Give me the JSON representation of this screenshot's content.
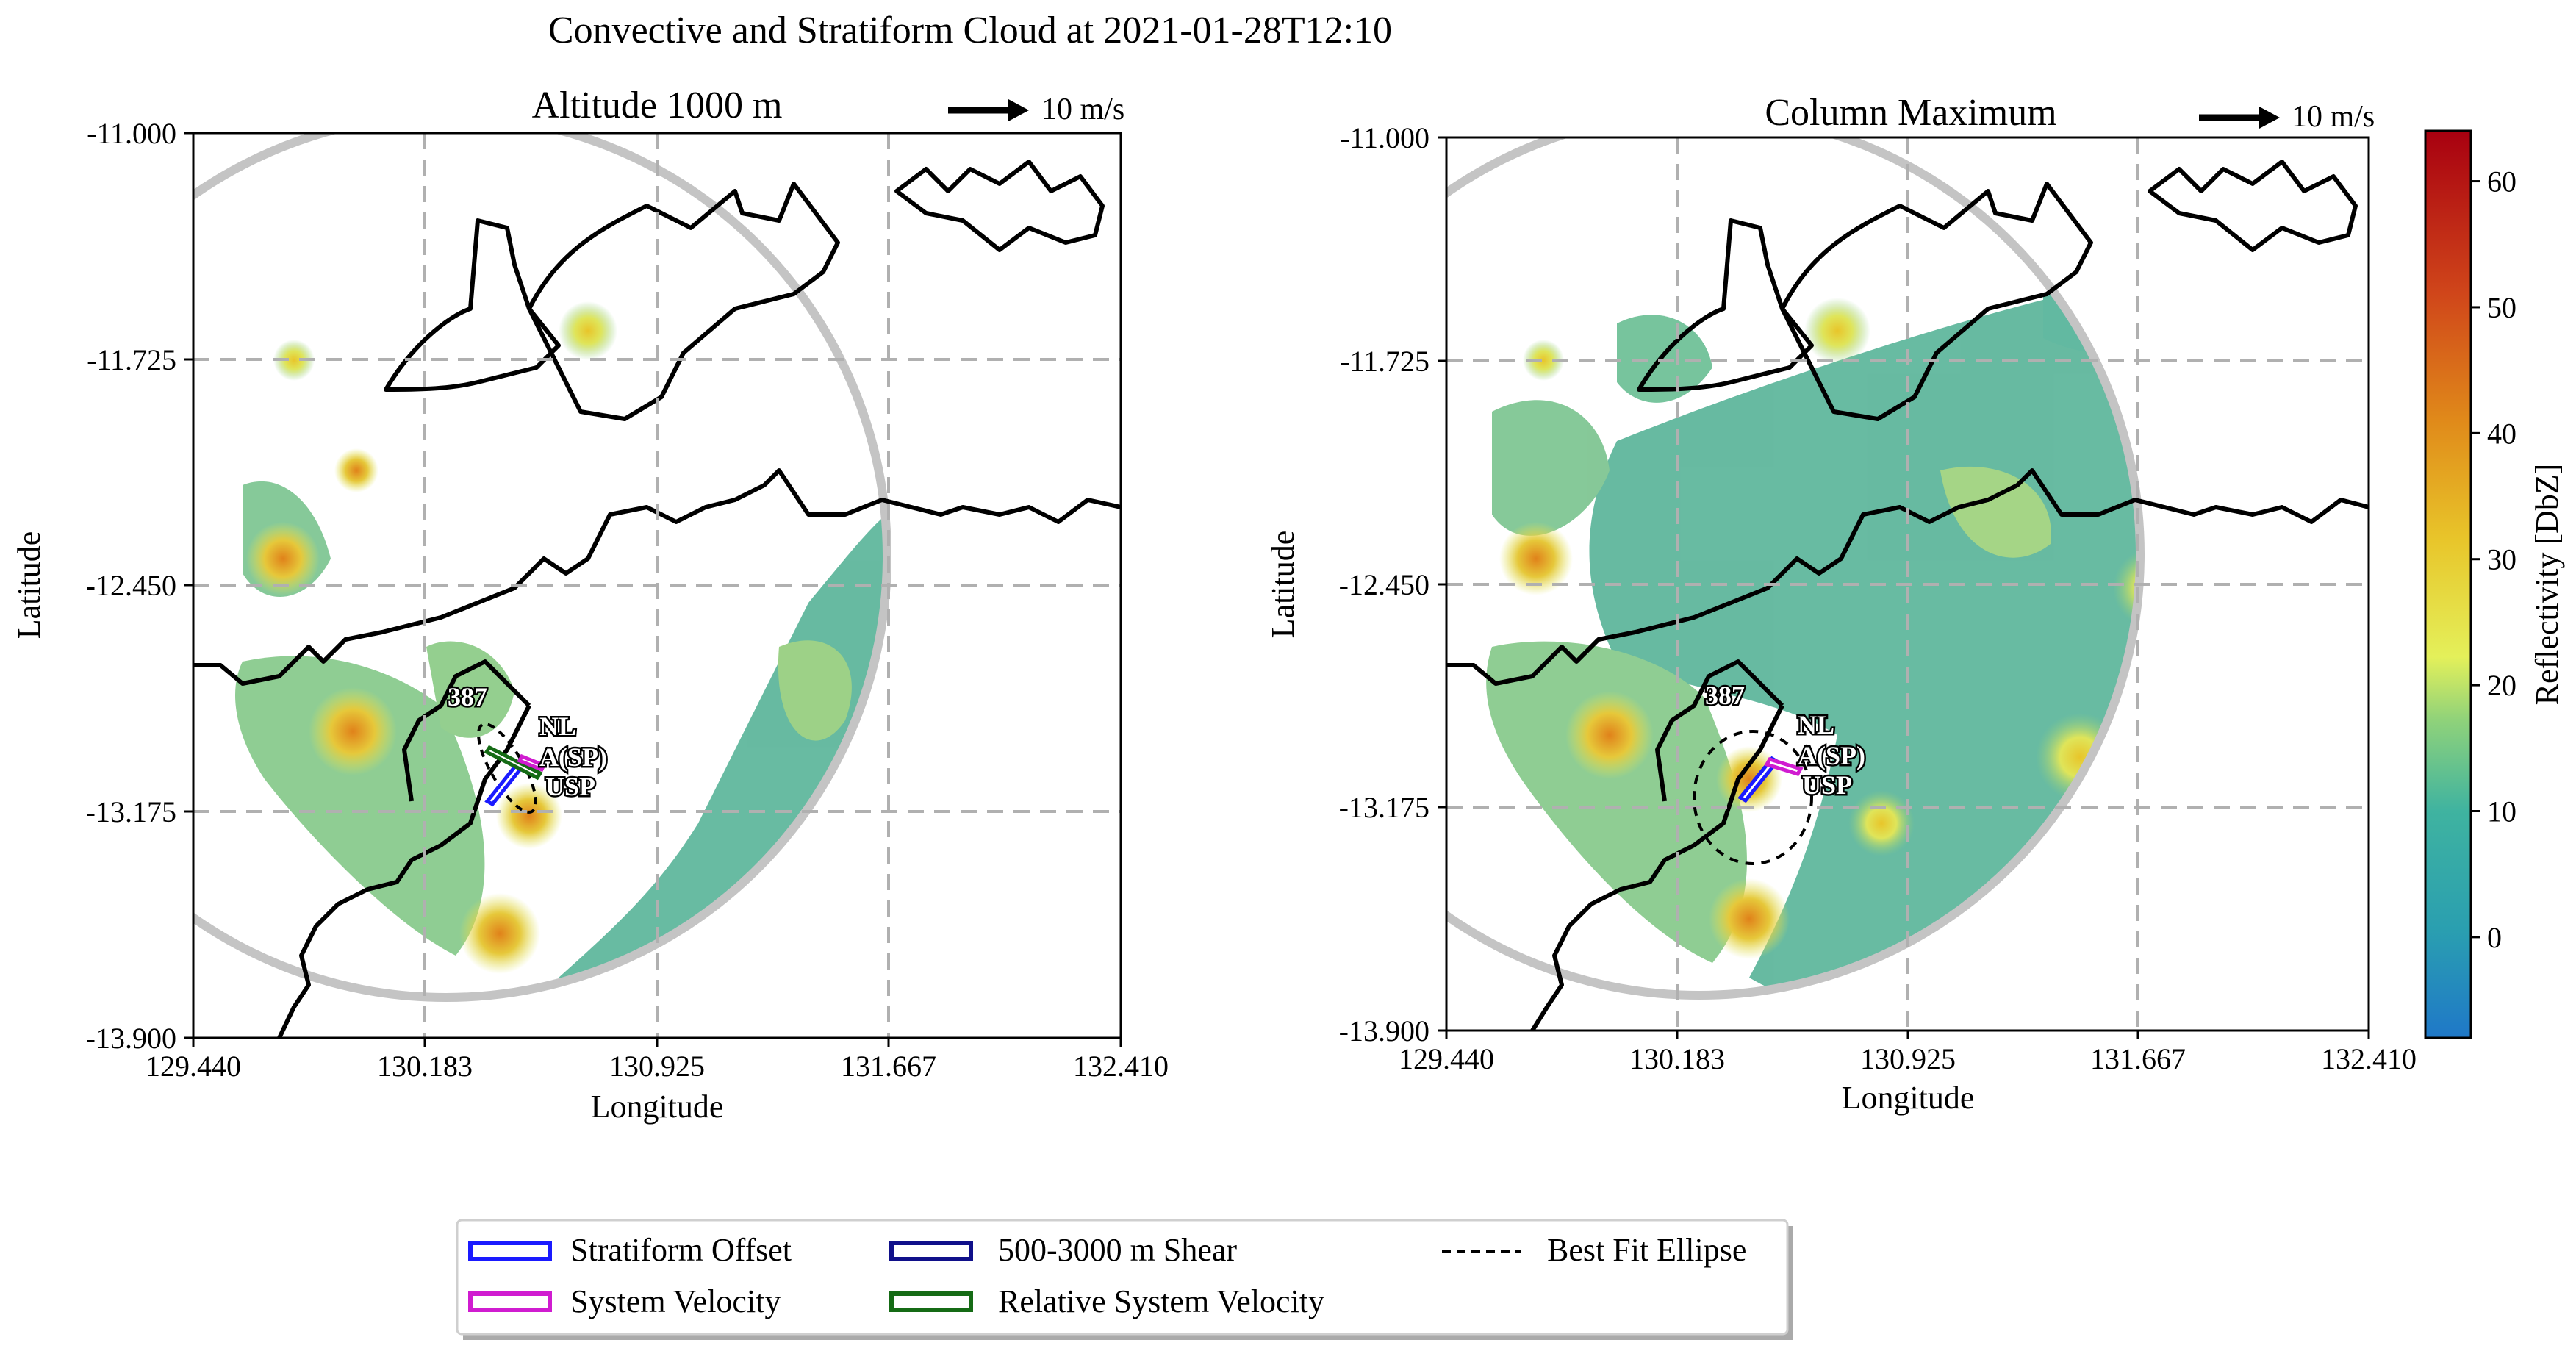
{
  "chart_data": {
    "type": "heatmap",
    "title": "Convective and Stratiform Cloud at 2021-01-28T12:10",
    "panels": [
      {
        "title": "Altitude 1000 m",
        "xlabel": "Longitude",
        "ylabel": "Latitude",
        "xlim": [
          129.44,
          132.41
        ],
        "ylim": [
          -13.9,
          -11.0
        ],
        "xticks": [
          "129.440",
          "130.183",
          "130.925",
          "131.667",
          "132.410"
        ],
        "yticks": [
          "-11.000",
          "-11.725",
          "-12.450",
          "-13.175",
          "-13.900"
        ],
        "scale_arrow_label": "10 m/s",
        "object_id": "387",
        "labels": [
          "NL",
          "A(SP)",
          "USP"
        ]
      },
      {
        "title": "Column Maximum",
        "xlabel": "Longitude",
        "ylabel": "Latitude",
        "xlim": [
          129.44,
          132.41
        ],
        "ylim": [
          -13.9,
          -11.0
        ],
        "xticks": [
          "129.440",
          "130.183",
          "130.925",
          "131.667",
          "132.410"
        ],
        "yticks": [
          "-11.000",
          "-11.725",
          "-12.450",
          "-13.175",
          "-13.900"
        ],
        "scale_arrow_label": "10 m/s",
        "object_id": "387",
        "labels": [
          "NL",
          "A(SP)",
          "USP"
        ]
      }
    ],
    "colorbar": {
      "label": "Reflectivity [DbZ]",
      "range": [
        -8,
        64
      ],
      "ticks": [
        "0",
        "10",
        "20",
        "30",
        "40",
        "50",
        "60"
      ]
    },
    "legend": [
      {
        "label": "Stratiform Offset",
        "color": "#1a1aff"
      },
      {
        "label": "500-3000 m Shear",
        "color": "#10108a"
      },
      {
        "label": "Best Fit Ellipse",
        "color": "#000000"
      },
      {
        "label": "System Velocity",
        "color": "#d01cd0"
      },
      {
        "label": "Relative System Velocity",
        "color": "#156b15"
      }
    ]
  }
}
